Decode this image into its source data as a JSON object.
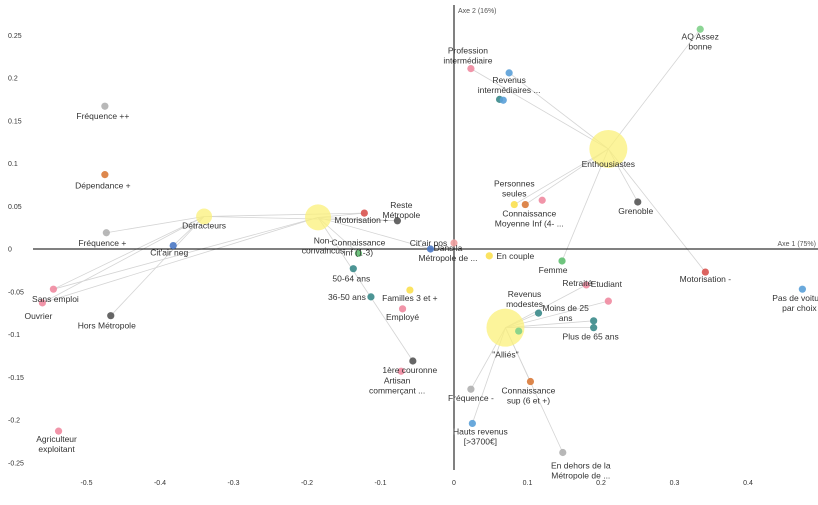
{
  "chart_data": {
    "type": "scatter",
    "xlabel": "Axe 1 (75%)",
    "ylabel": "Axe 2 (16%)",
    "xlim": [
      -0.57,
      0.5
    ],
    "ylim": [
      -0.265,
      0.28
    ],
    "xticks": [
      "-0.5",
      "-0.4",
      "-0.3",
      "-0.2",
      "-0.1",
      "0",
      "0.1",
      "0.2",
      "0.3",
      "0.4"
    ],
    "yticks": [
      "0.25",
      "0.2",
      "0.15",
      "0.1",
      "0.05",
      "0",
      "-0.05",
      "-0.1",
      "-0.15",
      "-0.2",
      "-0.25"
    ],
    "grid": false,
    "clusters": [
      {
        "name": "Enthousiastes",
        "x": 0.21,
        "y": 0.117,
        "size": "large",
        "members": [
          "Profession intermédiaire",
          "Revenus intermédiaires ...",
          "AQ Assez bonne",
          "Grenoble",
          "Connaissance Moyenne Inf (4- ...",
          "Personnes seules",
          "Motorisation -",
          "Femme"
        ]
      },
      {
        "name": "Détracteurs",
        "x": -0.34,
        "y": 0.038,
        "size": "small",
        "members": [
          "Cit'air neg",
          "Fréquence +",
          "Sans emploi",
          "Ouvrier",
          "Hors Métropole",
          "Motorisation +",
          "Reste Métropole"
        ]
      },
      {
        "name": "Non-convaincus",
        "x": -0.185,
        "y": 0.037,
        "size": "medium",
        "members": [
          "Sans emploi",
          "Ouvrier",
          "Motorisation +",
          "Reste Métropole",
          "Connaissance inf (1-3)",
          "Cit'air pos",
          "1ère couronne"
        ]
      },
      {
        "name": "\"Alliés\"",
        "x": 0.07,
        "y": -0.092,
        "size": "large",
        "members": [
          "Revenus modestes",
          "Moins de 25 ans",
          "Plus de 65 ans",
          "Retraité",
          "Etudiant",
          "Fréquence -",
          "Hauts revenus [>3700€]",
          "Connaissance sup (6 et +)",
          "En dehors de la Métropole de ..."
        ]
      }
    ],
    "points": [
      {
        "label": "Enthousiastes",
        "x": 0.21,
        "y": 0.117,
        "color": "#fbf07a"
      },
      {
        "label": "Détracteurs",
        "x": -0.34,
        "y": 0.038,
        "color": "#fbf07a"
      },
      {
        "label": "Non-convaincus",
        "x": -0.185,
        "y": 0.037,
        "color": "#fbf07a"
      },
      {
        "label": "\"Alliés\"",
        "x": 0.07,
        "y": -0.092,
        "color": "#fbf07a"
      },
      {
        "label": "Fréquence ++",
        "x": -0.475,
        "y": 0.167,
        "color": "#b0b0b0"
      },
      {
        "label": "Dépendance +",
        "x": -0.475,
        "y": 0.087,
        "color": "#d97a3a"
      },
      {
        "label": "Fréquence +",
        "x": -0.473,
        "y": 0.019,
        "color": "#b0b0b0"
      },
      {
        "label": "Cit'air neg",
        "x": -0.382,
        "y": 0.004,
        "color": "#4a78c4"
      },
      {
        "label": "Sans emploi",
        "x": -0.545,
        "y": -0.047,
        "color": "#f08aa0"
      },
      {
        "label": "Ouvrier",
        "x": -0.56,
        "y": -0.063,
        "color": "#f08aa0"
      },
      {
        "label": "Hors Métropole",
        "x": -0.467,
        "y": -0.078,
        "color": "#555555"
      },
      {
        "label": "Agriculteur exploitant",
        "x": -0.538,
        "y": -0.213,
        "color": "#f08aa0"
      },
      {
        "label": "Motorisation +",
        "x": -0.122,
        "y": 0.042,
        "color": "#d9534f"
      },
      {
        "label": "Reste Métropole",
        "x": -0.077,
        "y": 0.033,
        "color": "#555555"
      },
      {
        "label": "Connaissance inf (1-3)",
        "x": -0.13,
        "y": -0.005,
        "color": "#5fbf70"
      },
      {
        "label": "Cit'air pos",
        "x": -0.032,
        "y": 0.0,
        "color": "#4a78c4"
      },
      {
        "label": "Dans la Métropole de ...",
        "x": 0.0,
        "y": 0.007,
        "color": "#f0a0a0"
      },
      {
        "label": "50-64 ans",
        "x": -0.137,
        "y": -0.023,
        "color": "#3a8a8a"
      },
      {
        "label": "36-50 ans",
        "x": -0.113,
        "y": -0.056,
        "color": "#3a8a8a"
      },
      {
        "label": "Familles 3 et +",
        "x": -0.06,
        "y": -0.048,
        "color": "#fbe050"
      },
      {
        "label": "Employé",
        "x": -0.07,
        "y": -0.07,
        "color": "#f08aa0"
      },
      {
        "label": "1ère couronne",
        "x": -0.056,
        "y": -0.131,
        "color": "#555555"
      },
      {
        "label": "Artisan commerçant ...",
        "x": -0.072,
        "y": -0.143,
        "color": "#f08aa0"
      },
      {
        "label": "Profession intermédiaire",
        "x": 0.023,
        "y": 0.211,
        "color": "#f08aa0"
      },
      {
        "label": "Revenus intermédiaires ...",
        "x": 0.075,
        "y": 0.206,
        "color": "#5aa0d8"
      },
      {
        "label": "",
        "x": 0.062,
        "y": 0.175,
        "color": "#3a8a8a"
      },
      {
        "label": "",
        "x": 0.067,
        "y": 0.174,
        "color": "#5aa0d8"
      },
      {
        "label": "AQ Assez bonne",
        "x": 0.335,
        "y": 0.257,
        "color": "#7fd08a"
      },
      {
        "label": "Grenoble",
        "x": 0.25,
        "y": 0.055,
        "color": "#555555"
      },
      {
        "label": "Personnes seules",
        "x": 0.082,
        "y": 0.052,
        "color": "#fbe050"
      },
      {
        "label": "Connaissance Moyenne Inf (4- ...",
        "x": 0.097,
        "y": 0.052,
        "color": "#d97a3a"
      },
      {
        "label": "",
        "x": 0.12,
        "y": 0.057,
        "color": "#f08aa0"
      },
      {
        "label": "En couple",
        "x": 0.048,
        "y": -0.008,
        "color": "#fbe050"
      },
      {
        "label": "Femme",
        "x": 0.147,
        "y": -0.014,
        "color": "#5fbf70"
      },
      {
        "label": "Retraité",
        "x": 0.18,
        "y": -0.042,
        "color": "#f08aa0"
      },
      {
        "label": "Etudiant",
        "x": 0.21,
        "y": -0.061,
        "color": "#f08aa0"
      },
      {
        "label": "Motorisation -",
        "x": 0.342,
        "y": -0.027,
        "color": "#d9534f"
      },
      {
        "label": "Pas de voiture par choix",
        "x": 0.474,
        "y": -0.047,
        "color": "#5aa0d8"
      },
      {
        "label": "Revenus modestes",
        "x": 0.115,
        "y": -0.075,
        "color": "#3a8a8a"
      },
      {
        "label": "Moins de 25 ans",
        "x": 0.19,
        "y": -0.084,
        "color": "#3a8a8a"
      },
      {
        "label": "Plus de 65 ans",
        "x": 0.19,
        "y": -0.092,
        "color": "#3a8a8a"
      },
      {
        "label": "",
        "x": 0.088,
        "y": -0.096,
        "color": "#7fd08a"
      },
      {
        "label": "Fréquence -",
        "x": 0.023,
        "y": -0.164,
        "color": "#b0b0b0"
      },
      {
        "label": "Connaissance sup (6 et +)",
        "x": 0.104,
        "y": -0.155,
        "color": "#d97a3a"
      },
      {
        "label": "Hauts revenus [>3700€]",
        "x": 0.025,
        "y": -0.204,
        "color": "#5aa0d8"
      },
      {
        "label": "En dehors de la Métropole de ...",
        "x": 0.148,
        "y": -0.238,
        "color": "#b0b0b0"
      }
    ]
  }
}
